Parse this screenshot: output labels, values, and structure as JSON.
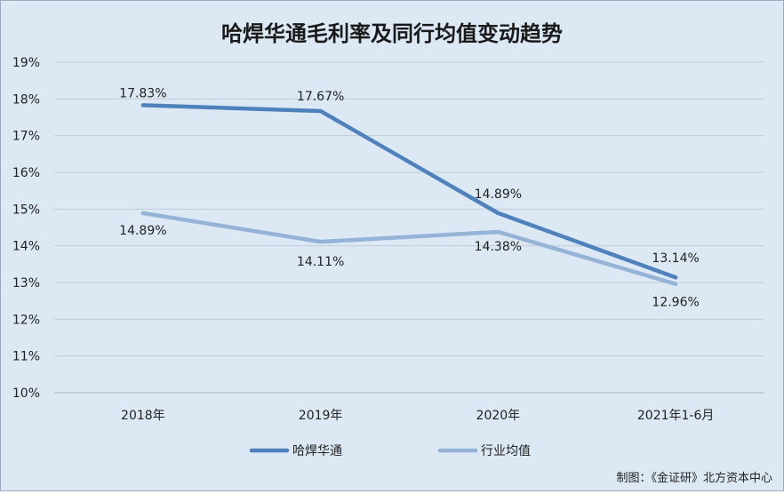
{
  "chart_data": {
    "type": "line",
    "title": "哈焊华通毛利率及同行均值变动趋势",
    "categories": [
      "2018年",
      "2019年",
      "2020年",
      "2021年1-6月"
    ],
    "ylim": [
      10,
      19
    ],
    "y_ticks": [
      "10%",
      "11%",
      "12%",
      "13%",
      "14%",
      "15%",
      "16%",
      "17%",
      "18%",
      "19%"
    ],
    "grid": true,
    "legend_position": "bottom",
    "series": [
      {
        "name": "哈焊华通",
        "values": [
          17.83,
          17.67,
          14.89,
          13.14
        ],
        "labels": [
          "17.83%",
          "17.67%",
          "14.89%",
          "13.14%"
        ],
        "color": "#4f81bd"
      },
      {
        "name": "行业均值",
        "values": [
          14.89,
          14.11,
          14.38,
          12.96
        ],
        "labels": [
          "14.89%",
          "14.11%",
          "14.38%",
          "12.96%"
        ],
        "color": "#95b3d7"
      }
    ],
    "source_note": "制图：《金证研》北方资本中心"
  }
}
